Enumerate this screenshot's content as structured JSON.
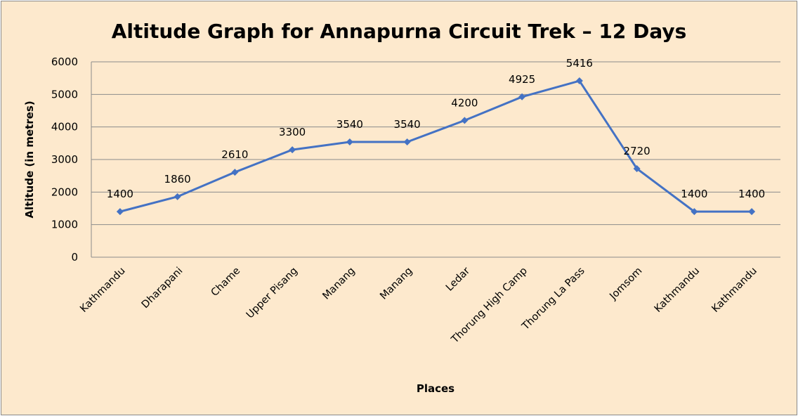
{
  "chart_data": {
    "type": "line",
    "title": "Altitude Graph for Annapurna Circuit Trek – 12 Days",
    "xlabel": "Places",
    "ylabel": "Altitude (in metres)",
    "categories": [
      "Kathmandu",
      "Dharapani",
      "Chame",
      "Upper Pisang",
      "Manang",
      "Manang",
      "Ledar",
      "Thorung High Camp",
      "Thorung La Pass",
      "Jomsom",
      "Kathmandu",
      "Kathmandu"
    ],
    "series": [
      {
        "name": "Altitude",
        "values": [
          1400,
          1860,
          2610,
          3300,
          3540,
          3540,
          4200,
          4925,
          5416,
          2720,
          1400,
          1400
        ],
        "color": "#4472c4",
        "marker": "diamond",
        "data_labels": true
      }
    ],
    "ylim": [
      0,
      6000
    ],
    "yticks": [
      0,
      1000,
      2000,
      3000,
      4000,
      5000,
      6000
    ],
    "grid": true,
    "legend": null
  },
  "style": {
    "background": "#fde9cd",
    "gridline": "#8c8c8c",
    "line": "#4472c4"
  }
}
